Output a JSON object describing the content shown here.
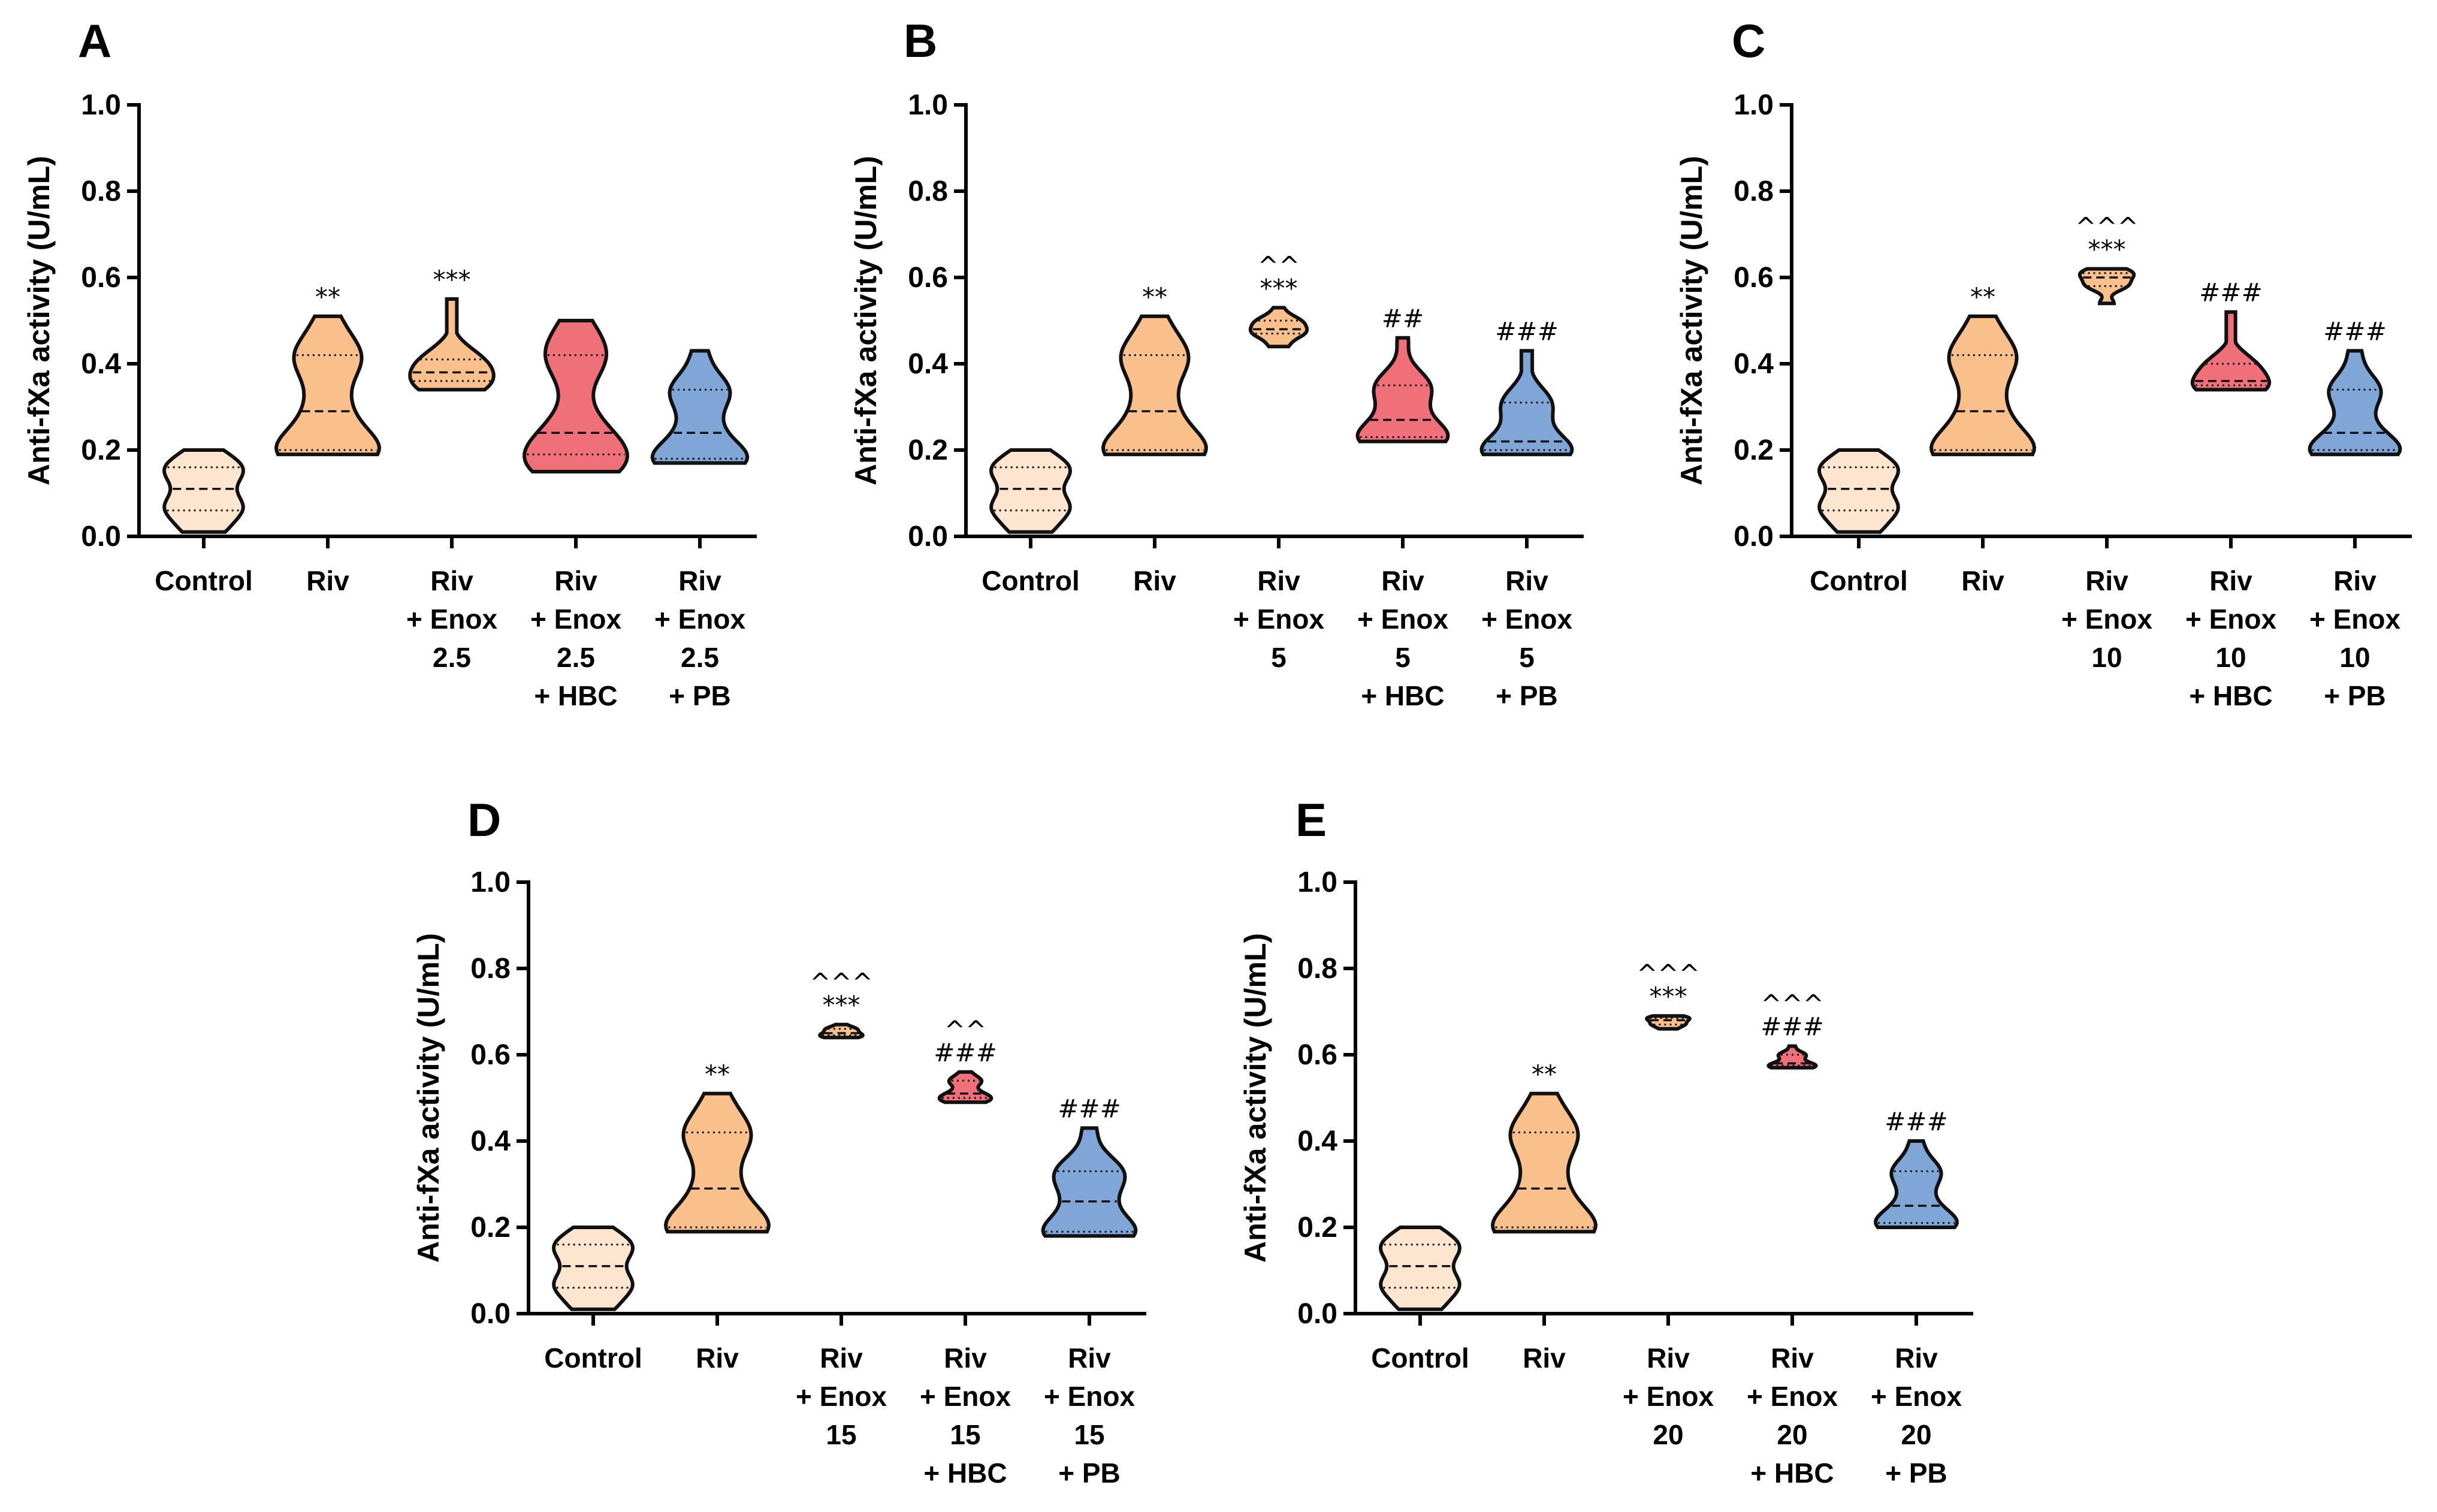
{
  "chart_data": [
    {
      "type": "violin",
      "panel": "A",
      "ylabel": "Anti-fXa activity (U/mL)",
      "ylim": [
        0,
        1.0
      ],
      "yticks": [
        "0.0",
        "0.2",
        "0.4",
        "0.6",
        "0.8",
        "1.0"
      ],
      "categories": [
        {
          "lines": [
            "Control"
          ],
          "color": "#fde5d0",
          "min": 0.01,
          "q1": 0.06,
          "median": 0.11,
          "q3": 0.16,
          "max": 0.2,
          "annotations": []
        },
        {
          "lines": [
            "Riv"
          ],
          "color": "#f9c08c",
          "min": 0.19,
          "q1": 0.2,
          "median": 0.29,
          "q3": 0.42,
          "max": 0.51,
          "annotations": [
            "**"
          ]
        },
        {
          "lines": [
            "Riv",
            "+ Enox",
            "2.5"
          ],
          "color": "#f9c08c",
          "min": 0.34,
          "q1": 0.36,
          "median": 0.38,
          "q3": 0.41,
          "max": 0.55,
          "annotations": [
            "***"
          ]
        },
        {
          "lines": [
            "Riv",
            "+ Enox",
            "2.5",
            "+ HBC"
          ],
          "color": "#f0707a",
          "min": 0.15,
          "q1": 0.19,
          "median": 0.24,
          "q3": 0.42,
          "max": 0.5,
          "annotations": []
        },
        {
          "lines": [
            "Riv",
            "+ Enox",
            "2.5",
            "+ PB"
          ],
          "color": "#7fa6d6",
          "min": 0.17,
          "q1": 0.18,
          "median": 0.24,
          "q3": 0.34,
          "max": 0.43,
          "annotations": []
        }
      ]
    },
    {
      "type": "violin",
      "panel": "B",
      "ylabel": "Anti-fXa activity (U/mL)",
      "ylim": [
        0,
        1.0
      ],
      "yticks": [
        "0.0",
        "0.2",
        "0.4",
        "0.6",
        "0.8",
        "1.0"
      ],
      "categories": [
        {
          "lines": [
            "Control"
          ],
          "color": "#fde5d0",
          "min": 0.01,
          "q1": 0.06,
          "median": 0.11,
          "q3": 0.16,
          "max": 0.2,
          "annotations": []
        },
        {
          "lines": [
            "Riv"
          ],
          "color": "#f9c08c",
          "min": 0.19,
          "q1": 0.2,
          "median": 0.29,
          "q3": 0.42,
          "max": 0.51,
          "annotations": [
            "**"
          ]
        },
        {
          "lines": [
            "Riv",
            "+ Enox",
            "5"
          ],
          "color": "#f9c08c",
          "min": 0.44,
          "q1": 0.47,
          "median": 0.48,
          "q3": 0.5,
          "max": 0.53,
          "annotations": [
            "***",
            "^^"
          ]
        },
        {
          "lines": [
            "Riv",
            "+ Enox",
            "5",
            "+ HBC"
          ],
          "color": "#f0707a",
          "min": 0.22,
          "q1": 0.23,
          "median": 0.27,
          "q3": 0.35,
          "max": 0.46,
          "annotations": [
            "##"
          ]
        },
        {
          "lines": [
            "Riv",
            "+ Enox",
            "5",
            "+ PB"
          ],
          "color": "#7fa6d6",
          "min": 0.19,
          "q1": 0.2,
          "median": 0.22,
          "q3": 0.31,
          "max": 0.43,
          "annotations": [
            "###"
          ]
        }
      ]
    },
    {
      "type": "violin",
      "panel": "C",
      "ylabel": "Anti-fXa activity (U/mL)",
      "ylim": [
        0,
        1.0
      ],
      "yticks": [
        "0.0",
        "0.2",
        "0.4",
        "0.6",
        "0.8",
        "1.0"
      ],
      "categories": [
        {
          "lines": [
            "Control"
          ],
          "color": "#fde5d0",
          "min": 0.01,
          "q1": 0.06,
          "median": 0.11,
          "q3": 0.16,
          "max": 0.2,
          "annotations": []
        },
        {
          "lines": [
            "Riv"
          ],
          "color": "#f9c08c",
          "min": 0.19,
          "q1": 0.2,
          "median": 0.29,
          "q3": 0.42,
          "max": 0.51,
          "annotations": [
            "**"
          ]
        },
        {
          "lines": [
            "Riv",
            "+ Enox",
            "10"
          ],
          "color": "#f9c08c",
          "min": 0.54,
          "q1": 0.58,
          "median": 0.6,
          "q3": 0.61,
          "max": 0.62,
          "annotations": [
            "***",
            "^^^"
          ]
        },
        {
          "lines": [
            "Riv",
            "+ Enox",
            "10",
            "+ HBC"
          ],
          "color": "#f0707a",
          "min": 0.34,
          "q1": 0.35,
          "median": 0.36,
          "q3": 0.4,
          "max": 0.52,
          "annotations": [
            "###"
          ]
        },
        {
          "lines": [
            "Riv",
            "+ Enox",
            "10",
            "+ PB"
          ],
          "color": "#7fa6d6",
          "min": 0.19,
          "q1": 0.2,
          "median": 0.24,
          "q3": 0.34,
          "max": 0.43,
          "annotations": [
            "###"
          ]
        }
      ]
    },
    {
      "type": "violin",
      "panel": "D",
      "ylabel": "Anti-fXa activity (U/mL)",
      "ylim": [
        0,
        1.0
      ],
      "yticks": [
        "0.0",
        "0.2",
        "0.4",
        "0.6",
        "0.8",
        "1.0"
      ],
      "categories": [
        {
          "lines": [
            "Control"
          ],
          "color": "#fde5d0",
          "min": 0.01,
          "q1": 0.06,
          "median": 0.11,
          "q3": 0.16,
          "max": 0.2,
          "annotations": []
        },
        {
          "lines": [
            "Riv"
          ],
          "color": "#f9c08c",
          "min": 0.19,
          "q1": 0.2,
          "median": 0.29,
          "q3": 0.42,
          "max": 0.51,
          "annotations": [
            "**"
          ]
        },
        {
          "lines": [
            "Riv",
            "+ Enox",
            "15"
          ],
          "color": "#f9c08c",
          "min": 0.64,
          "q1": 0.645,
          "median": 0.65,
          "q3": 0.66,
          "max": 0.67,
          "annotations": [
            "***",
            "^^^"
          ]
        },
        {
          "lines": [
            "Riv",
            "+ Enox",
            "15",
            "+ HBC"
          ],
          "color": "#f0707a",
          "min": 0.49,
          "q1": 0.5,
          "median": 0.51,
          "q3": 0.54,
          "max": 0.56,
          "annotations": [
            "###",
            "^^"
          ]
        },
        {
          "lines": [
            "Riv",
            "+ Enox",
            "15",
            "+ PB"
          ],
          "color": "#7fa6d6",
          "min": 0.18,
          "q1": 0.19,
          "median": 0.26,
          "q3": 0.33,
          "max": 0.43,
          "annotations": [
            "###"
          ]
        }
      ]
    },
    {
      "type": "violin",
      "panel": "E",
      "ylabel": "Anti-fXa activity (U/mL)",
      "ylim": [
        0,
        1.0
      ],
      "yticks": [
        "0.0",
        "0.2",
        "0.4",
        "0.6",
        "0.8",
        "1.0"
      ],
      "categories": [
        {
          "lines": [
            "Control"
          ],
          "color": "#fde5d0",
          "min": 0.01,
          "q1": 0.06,
          "median": 0.11,
          "q3": 0.16,
          "max": 0.2,
          "annotations": []
        },
        {
          "lines": [
            "Riv"
          ],
          "color": "#f9c08c",
          "min": 0.19,
          "q1": 0.2,
          "median": 0.29,
          "q3": 0.42,
          "max": 0.51,
          "annotations": [
            "**"
          ]
        },
        {
          "lines": [
            "Riv",
            "+ Enox",
            "20"
          ],
          "color": "#f9c08c",
          "min": 0.66,
          "q1": 0.67,
          "median": 0.68,
          "q3": 0.685,
          "max": 0.69,
          "annotations": [
            "***",
            "^^^"
          ]
        },
        {
          "lines": [
            "Riv",
            "+ Enox",
            "20",
            "+ HBC"
          ],
          "color": "#f0707a",
          "min": 0.57,
          "q1": 0.575,
          "median": 0.58,
          "q3": 0.6,
          "max": 0.62,
          "annotations": [
            "###",
            "^^^"
          ]
        },
        {
          "lines": [
            "Riv",
            "+ Enox",
            "20",
            "+ PB"
          ],
          "color": "#7fa6d6",
          "min": 0.2,
          "q1": 0.21,
          "median": 0.25,
          "q3": 0.33,
          "max": 0.4,
          "annotations": [
            "###"
          ]
        }
      ]
    }
  ]
}
